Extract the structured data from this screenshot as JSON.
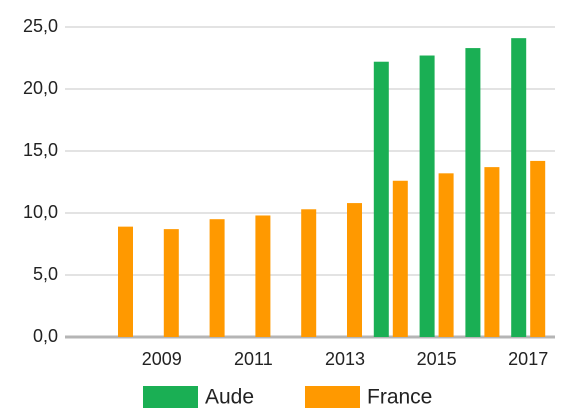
{
  "chart_data": {
    "type": "bar",
    "categories": [
      null,
      "2009",
      null,
      "2011",
      null,
      "2013",
      null,
      "2015",
      null,
      "2017"
    ],
    "series": [
      {
        "name": "Aude",
        "color": "#1aaf54",
        "values": [
          null,
          null,
          null,
          null,
          null,
          null,
          22.2,
          22.7,
          23.3,
          24.1
        ]
      },
      {
        "name": "France",
        "color": "#ff9900",
        "values": [
          8.9,
          8.7,
          9.5,
          9.8,
          10.3,
          10.8,
          12.6,
          13.2,
          13.7,
          14.2
        ]
      }
    ],
    "ylim": [
      0,
      25
    ],
    "yticks": [
      {
        "value": 0,
        "label": "0,0"
      },
      {
        "value": 5,
        "label": "5,0"
      },
      {
        "value": 10,
        "label": "10,0"
      },
      {
        "value": 15,
        "label": "15,0"
      },
      {
        "value": 20,
        "label": "20,0"
      },
      {
        "value": 25,
        "label": "25,0"
      }
    ],
    "grid": true,
    "legend": "bottom"
  }
}
